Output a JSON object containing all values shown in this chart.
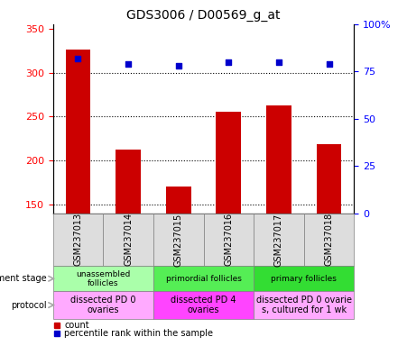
{
  "title": "GDS3006 / D00569_g_at",
  "samples": [
    "GSM237013",
    "GSM237014",
    "GSM237015",
    "GSM237016",
    "GSM237017",
    "GSM237018"
  ],
  "counts": [
    326,
    212,
    170,
    255,
    263,
    218
  ],
  "percentiles": [
    82,
    79,
    78,
    80,
    80,
    79
  ],
  "ylim_left": [
    140,
    355
  ],
  "ylim_right": [
    0,
    100
  ],
  "yticks_left": [
    150,
    200,
    250,
    300,
    350
  ],
  "yticks_right": [
    0,
    25,
    50,
    75,
    100
  ],
  "bar_color": "#cc0000",
  "dot_color": "#0000cc",
  "dev_stage_groups": [
    {
      "label": "unassembled\nfollicles",
      "start": 0,
      "end": 2,
      "color": "#aaffaa"
    },
    {
      "label": "primordial follicles",
      "start": 2,
      "end": 4,
      "color": "#55ee55"
    },
    {
      "label": "primary follicles",
      "start": 4,
      "end": 6,
      "color": "#33dd33"
    }
  ],
  "protocol_groups": [
    {
      "label": "dissected PD 0\novaries",
      "start": 0,
      "end": 2,
      "color": "#ffaaff"
    },
    {
      "label": "dissected PD 4\novaries",
      "start": 2,
      "end": 4,
      "color": "#ff44ff"
    },
    {
      "label": "dissected PD 0 ovarie\ns, cultured for 1 wk",
      "start": 4,
      "end": 6,
      "color": "#ffaaff"
    }
  ],
  "dev_stage_label": "development stage",
  "protocol_label": "protocol",
  "legend_count_label": "count",
  "legend_pct_label": "percentile rank within the sample",
  "background_color": "#ffffff",
  "grid_linestyle": ":",
  "grid_linewidth": 0.8
}
